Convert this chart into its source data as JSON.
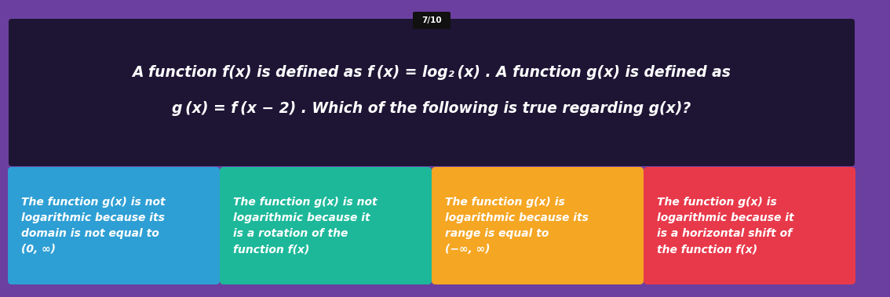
{
  "bg_color": "#6b3fa0",
  "question_bg": "#1e1535",
  "badge_text": "7/10",
  "badge_bg": "#111111",
  "badge_fg": "#ffffff",
  "question_line1": "A function f(x) is defined as f (x) = log₂ (x) . A function g(x) is defined as",
  "question_line2": "g (x) = f (x − 2) . Which of the following is true regarding g(x)?",
  "cards": [
    {
      "color": "#2e9fd4",
      "text": "The function g(x) is not\nlogarithmic because its\ndomain is not equal to\n(0, ∞)"
    },
    {
      "color": "#1db89a",
      "text": "The function g(x) is not\nlogarithmic because it\nis a rotation of the\nfunction f(x)"
    },
    {
      "color": "#f5a623",
      "text": "The function g(x) is\nlogarithmic because its\nrange is equal to\n(−∞, ∞)"
    },
    {
      "color": "#e8394a",
      "text": "The function g(x) is\nlogarithmic because it\nis a horizontal shift of\nthe function f(x)"
    }
  ]
}
